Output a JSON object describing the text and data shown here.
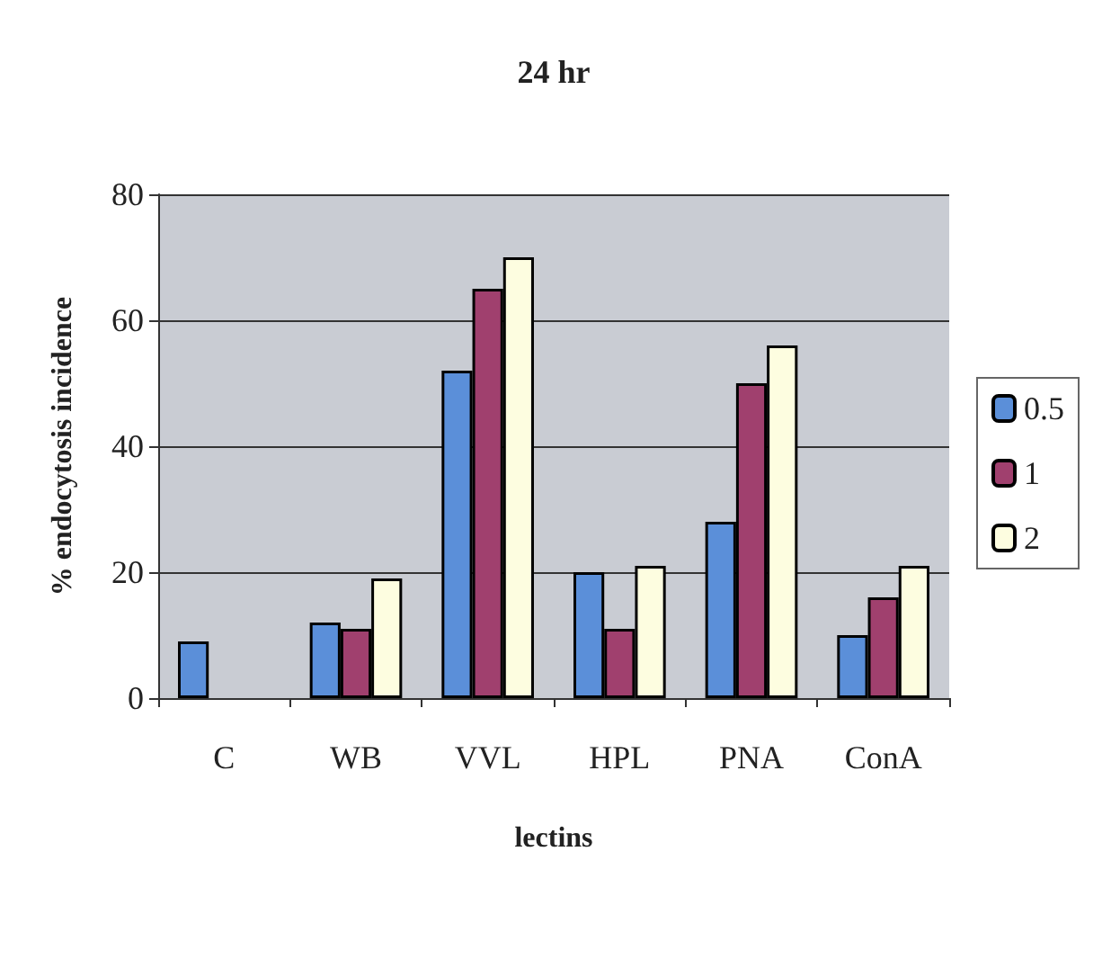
{
  "chart_data": {
    "type": "bar",
    "title": "24 hr",
    "xlabel": "lectins",
    "ylabel": "% endocytosis incidence",
    "categories": [
      "C",
      "WB",
      "VVL",
      "HPL",
      "PNA",
      "ConA"
    ],
    "series": [
      {
        "name": "0.5",
        "color": "#5b8fd9",
        "values": [
          9,
          12,
          52,
          20,
          28,
          10
        ]
      },
      {
        "name": "1",
        "color": "#a0406e",
        "values": [
          null,
          11,
          65,
          11,
          50,
          16
        ]
      },
      {
        "name": "2",
        "color": "#fdfde0",
        "values": [
          null,
          19,
          70,
          21,
          56,
          21
        ]
      }
    ],
    "ylim": [
      0,
      80
    ],
    "yticks": [
      0,
      20,
      40,
      60,
      80
    ],
    "grid": "y",
    "legend": "right"
  }
}
